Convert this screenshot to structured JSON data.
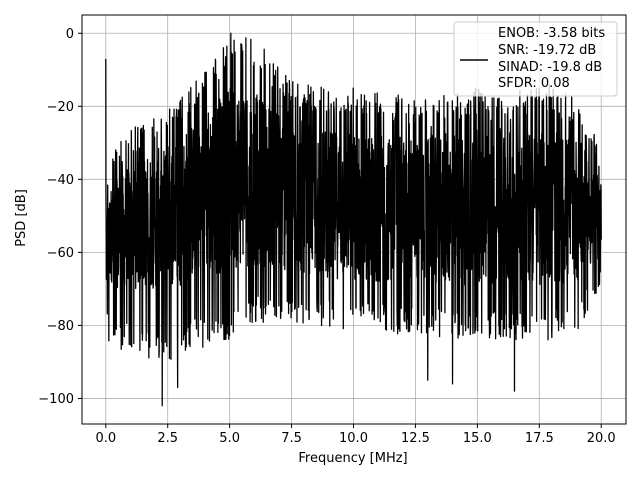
{
  "chart_data": {
    "type": "line",
    "title": "",
    "xlabel": "Frequency [MHz]",
    "ylabel": "PSD [dB]",
    "xlim": [
      -0.96,
      21.0
    ],
    "ylim": [
      -107.0,
      5.0
    ],
    "grid": true,
    "line_color": "#000000",
    "x_ticks": [
      {
        "value": 0.0,
        "label": "0.0"
      },
      {
        "value": 2.5,
        "label": "2.5"
      },
      {
        "value": 5.0,
        "label": "5.0"
      },
      {
        "value": 7.5,
        "label": "7.5"
      },
      {
        "value": 10.0,
        "label": "10.0"
      },
      {
        "value": 12.5,
        "label": "12.5"
      },
      {
        "value": 15.0,
        "label": "15.0"
      },
      {
        "value": 17.5,
        "label": "17.5"
      },
      {
        "value": 20.0,
        "label": "20.0"
      }
    ],
    "y_ticks": [
      {
        "value": 0,
        "label": "0"
      },
      {
        "value": -20,
        "label": "−20"
      },
      {
        "value": -40,
        "label": "−40"
      },
      {
        "value": -60,
        "label": "−60"
      },
      {
        "value": -80,
        "label": "−80"
      },
      {
        "value": -100,
        "label": "−100"
      }
    ],
    "legend": {
      "placement": "top-right",
      "entries": [
        "ENOB: -3.58 bits",
        "SNR: -19.72 dB",
        "SINAD: -19.8 dB",
        "SFDR: 0.08"
      ]
    },
    "series": [
      {
        "x": [
          0.0,
          0.05,
          0.1,
          0.2,
          0.5,
          1.0,
          1.5,
          2.0,
          2.5,
          3.0,
          3.5,
          4.0,
          4.5,
          5.0,
          5.3,
          5.6,
          6.0,
          6.5,
          7.0,
          7.5,
          8.0,
          9.0,
          10.0,
          11.0,
          12.0,
          13.0,
          14.0,
          15.0,
          16.0,
          17.0,
          18.0,
          19.0,
          20.0
        ],
        "upper": [
          -7,
          -40,
          -36,
          -30,
          -30,
          -24,
          -25,
          -22,
          -20,
          -18,
          -14,
          -10,
          -6,
          -1,
          0,
          -1,
          -2,
          -5,
          -9,
          -12,
          -14,
          -15,
          -14,
          -16,
          -17,
          -18,
          -16,
          -15,
          -17,
          -15,
          -14,
          -18,
          -30
        ],
        "lower": [
          -68,
          -82,
          -87,
          -86,
          -88,
          -86,
          -88,
          -90,
          -90,
          -88,
          -86,
          -86,
          -84,
          -84,
          -82,
          -80,
          -80,
          -80,
          -80,
          -80,
          -80,
          -81,
          -82,
          -82,
          -83,
          -83,
          -84,
          -84,
          -84,
          -84,
          -84,
          -82,
          -70
        ],
        "body_top": [
          -45,
          -50,
          -45,
          -42,
          -40,
          -36,
          -34,
          -32,
          -30,
          -28,
          -24,
          -20,
          -17,
          -15,
          -14,
          -14,
          -16,
          -18,
          -20,
          -22,
          -24,
          -26,
          -27,
          -28,
          -28,
          -28,
          -27,
          -26,
          -26,
          -27,
          -27,
          -28,
          -40
        ],
        "body_bottom": [
          -60,
          -66,
          -68,
          -68,
          -70,
          -70,
          -70,
          -70,
          -69,
          -69,
          -68,
          -67,
          -66,
          -65,
          -64,
          -64,
          -64,
          -64,
          -65,
          -66,
          -66,
          -67,
          -68,
          -68,
          -68,
          -68,
          -69,
          -69,
          -69,
          -69,
          -69,
          -68,
          -62
        ],
        "spikes": [
          {
            "x": 0.0,
            "y": -7
          },
          {
            "x": 2.28,
            "y": -102
          },
          {
            "x": 2.9,
            "y": -97
          },
          {
            "x": 5.05,
            "y": 0
          },
          {
            "x": 13.0,
            "y": -95
          },
          {
            "x": 14.0,
            "y": -96
          },
          {
            "x": 16.5,
            "y": -98
          }
        ]
      }
    ]
  }
}
